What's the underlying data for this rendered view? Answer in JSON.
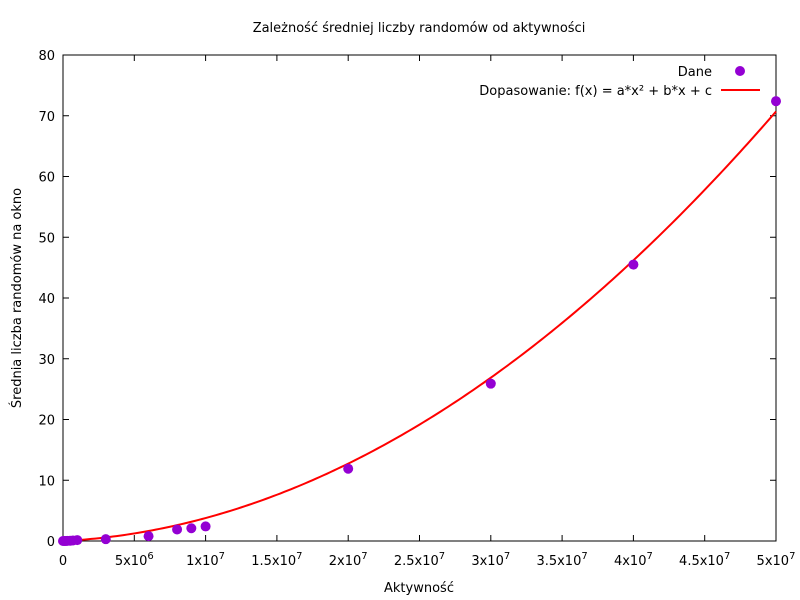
{
  "chart_data": {
    "type": "scatter",
    "title": "Zależność średniej liczby randomów od aktywności",
    "xlabel": "Aktywność",
    "ylabel": "Średnia liczba randomów na okno",
    "xlim": [
      0,
      50000000
    ],
    "ylim": [
      0,
      80
    ],
    "grid": false,
    "legend_position": "top-right",
    "x_ticks": [
      {
        "value": 0,
        "base": "0",
        "exp": ""
      },
      {
        "value": 5000000,
        "base": "5x10",
        "exp": "6"
      },
      {
        "value": 10000000,
        "base": "1x10",
        "exp": "7"
      },
      {
        "value": 15000000,
        "base": "1.5x10",
        "exp": "7"
      },
      {
        "value": 20000000,
        "base": "2x10",
        "exp": "7"
      },
      {
        "value": 25000000,
        "base": "2.5x10",
        "exp": "7"
      },
      {
        "value": 30000000,
        "base": "3x10",
        "exp": "7"
      },
      {
        "value": 35000000,
        "base": "3.5x10",
        "exp": "7"
      },
      {
        "value": 40000000,
        "base": "4x10",
        "exp": "7"
      },
      {
        "value": 45000000,
        "base": "4.5x10",
        "exp": "7"
      },
      {
        "value": 50000000,
        "base": "5x10",
        "exp": "7"
      }
    ],
    "y_ticks": [
      0,
      10,
      20,
      30,
      40,
      50,
      60,
      70,
      80
    ],
    "series": [
      {
        "name": "Dane",
        "kind": "points",
        "color": "#9400d3",
        "x": [
          0,
          100000,
          200000,
          300000,
          500000,
          700000,
          1000000,
          3000000,
          6000000,
          8000000,
          9000000,
          10000000,
          20000000,
          30000000,
          40000000,
          50000000
        ],
        "y": [
          0.0,
          0.0,
          0.01,
          0.02,
          0.05,
          0.08,
          0.15,
          0.3,
          0.8,
          1.9,
          2.1,
          2.4,
          11.9,
          25.9,
          45.5,
          72.4
        ]
      },
      {
        "name": "Dopasowanie: f(x) = a*x² + b*x + c",
        "kind": "line",
        "color": "#ff0000",
        "fit": {
          "a": 2.59e-14,
          "b": 1.19e-07,
          "c": 0
        }
      }
    ]
  }
}
